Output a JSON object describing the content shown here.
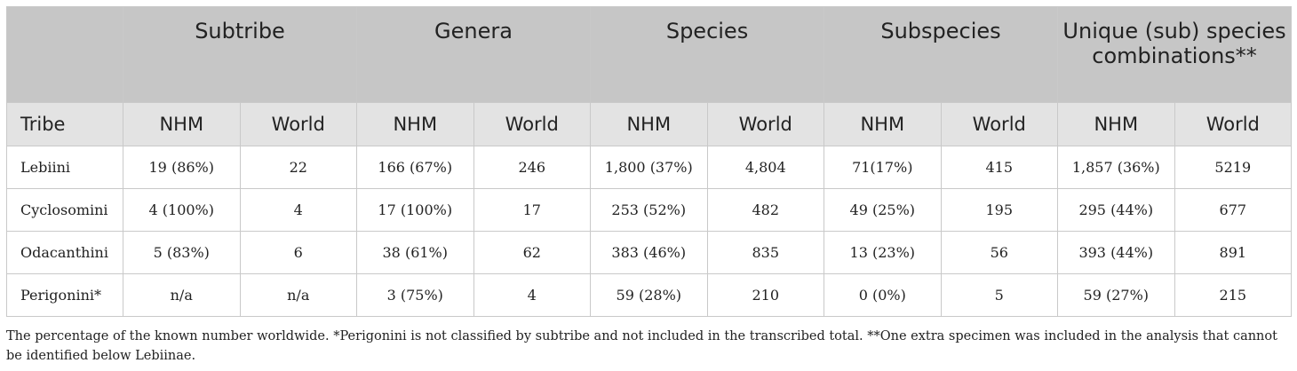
{
  "header": {
    "groups": [
      "Subtribe",
      "Genera",
      "Species",
      "Subspecies",
      "Unique (sub) species combinations**"
    ],
    "tribe_label": "Tribe",
    "sub_labels": [
      "NHM",
      "World",
      "NHM",
      "World",
      "NHM",
      "World",
      "NHM",
      "World",
      "NHM",
      "World"
    ]
  },
  "rows": [
    {
      "tribe": "Lebiini",
      "cells": [
        "19 (86%)",
        "22",
        "166 (67%)",
        "246",
        "1,800 (37%)",
        "4,804",
        "71(17%)",
        "415",
        "1,857 (36%)",
        "5219"
      ]
    },
    {
      "tribe": "Cyclosomini",
      "cells": [
        "4 (100%)",
        "4",
        "17 (100%)",
        "17",
        "253 (52%)",
        "482",
        "49 (25%)",
        "195",
        "295 (44%)",
        "677"
      ]
    },
    {
      "tribe": "Odacanthini",
      "cells": [
        "5 (83%)",
        "6",
        "38 (61%)",
        "62",
        "383 (46%)",
        "835",
        "13 (23%)",
        "56",
        "393 (44%)",
        "891"
      ]
    },
    {
      "tribe": "Perigonini*",
      "cells": [
        "n/a",
        "n/a",
        "3 (75%)",
        "4",
        "59 (28%)",
        "210",
        "0 (0%)",
        "5",
        "59 (27%)",
        "215"
      ]
    }
  ],
  "footnote": "The percentage of the known number worldwide. *Perigonini is not classified by subtribe and not included in the transcribed total. **One extra specimen was included in the analysis that cannot be identified below Lebiinae."
}
